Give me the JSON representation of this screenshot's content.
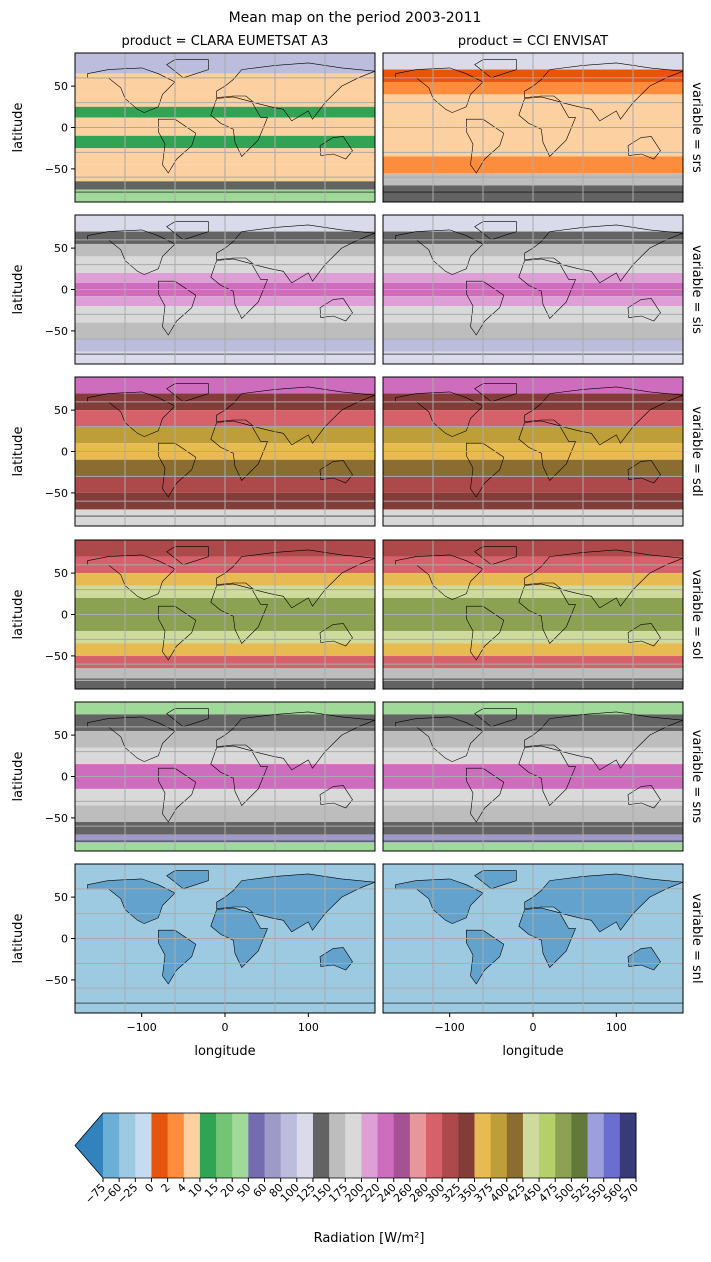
{
  "chart_data": {
    "type": "map",
    "title": "Mean map on the period 2003-2011",
    "col_labels": [
      "product = CLARA EUMETSAT A3",
      "product = CCI ENVISAT"
    ],
    "row_labels": [
      "variable = srs",
      "variable = sis",
      "variable = sdl",
      "variable = sol",
      "variable = sns",
      "variable = snl"
    ],
    "xlabel": "longitude",
    "ylabel": "latitude",
    "xlim": [
      -180,
      180
    ],
    "ylim": [
      -90,
      90
    ],
    "xticks": [
      {
        "value": -100,
        "label": "−100"
      },
      0,
      100
    ],
    "yticks": [
      {
        "value": -50,
        "label": "−50"
      },
      0,
      50
    ],
    "colorbar": {
      "label": "Radiation [W/m²]",
      "ticks": [
        {
          "value": -75,
          "label": "−75"
        },
        {
          "value": -60,
          "label": "−60"
        },
        {
          "value": -25,
          "label": "−25"
        },
        0,
        2,
        4,
        10,
        15,
        20,
        50,
        60,
        80,
        100,
        125,
        150,
        175,
        200,
        220,
        240,
        260,
        280,
        300,
        325,
        350,
        375,
        400,
        425,
        450,
        475,
        500,
        525,
        550,
        560,
        570
      ],
      "colors": [
        "#6baed6",
        "#9ecae1",
        "#c6dbef",
        "#e6550d",
        "#fd8d3c",
        "#fdd0a2",
        "#31a354",
        "#74c476",
        "#a1d99b",
        "#756bb1",
        "#9e9ac8",
        "#bcbddc",
        "#dadaeb",
        "#636363",
        "#bdbdbd",
        "#d9d9d9",
        "#de9ed6",
        "#ce6dbd",
        "#a55194",
        "#e7969c",
        "#d6616b",
        "#ad494a",
        "#843c39",
        "#e7ba52",
        "#bd9e39",
        "#8c6d31",
        "#cedb9c",
        "#b5cf6b",
        "#8ca252",
        "#637939",
        "#9c9ede",
        "#6b6ecf",
        "#393b79"
      ],
      "extend_color": "#3182bd"
    }
  }
}
